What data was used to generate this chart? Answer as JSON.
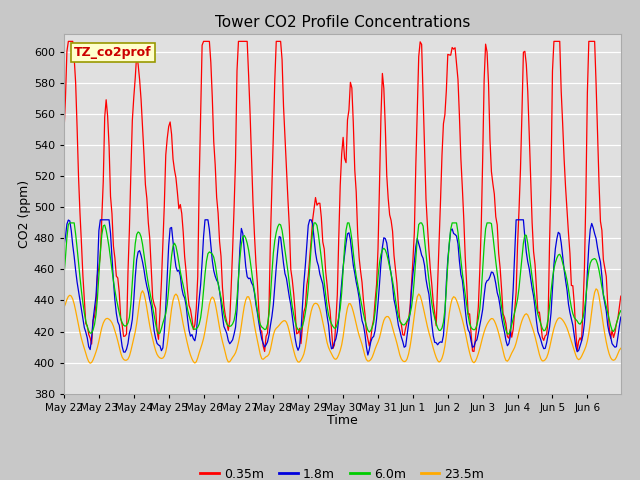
{
  "title": "Tower CO2 Profile Concentrations",
  "xlabel": "Time",
  "ylabel": "CO2 (ppm)",
  "ylim": [
    380,
    612
  ],
  "yticks": [
    380,
    400,
    420,
    440,
    460,
    480,
    500,
    520,
    540,
    560,
    580,
    600
  ],
  "legend_label": "TZ_co2prof",
  "series_labels": [
    "0.35m",
    "1.8m",
    "6.0m",
    "23.5m"
  ],
  "series_colors": [
    "#ff0000",
    "#0000dd",
    "#00cc00",
    "#ffaa00"
  ],
  "bg_color": "#c8c8c8",
  "plot_bg_color": "#e0e0e0",
  "grid_color": "#ffffff",
  "day_labels": [
    "May 22",
    "May 23",
    "May 24",
    "May 25",
    "May 26",
    "May 27",
    "May 28",
    "May 29",
    "May 30",
    "May 31",
    "Jun 1",
    "Jun 2",
    "Jun 3",
    "Jun 4",
    "Jun 5",
    "Jun 6"
  ],
  "n_days": 16,
  "n_per_day": 24,
  "seed": 7
}
